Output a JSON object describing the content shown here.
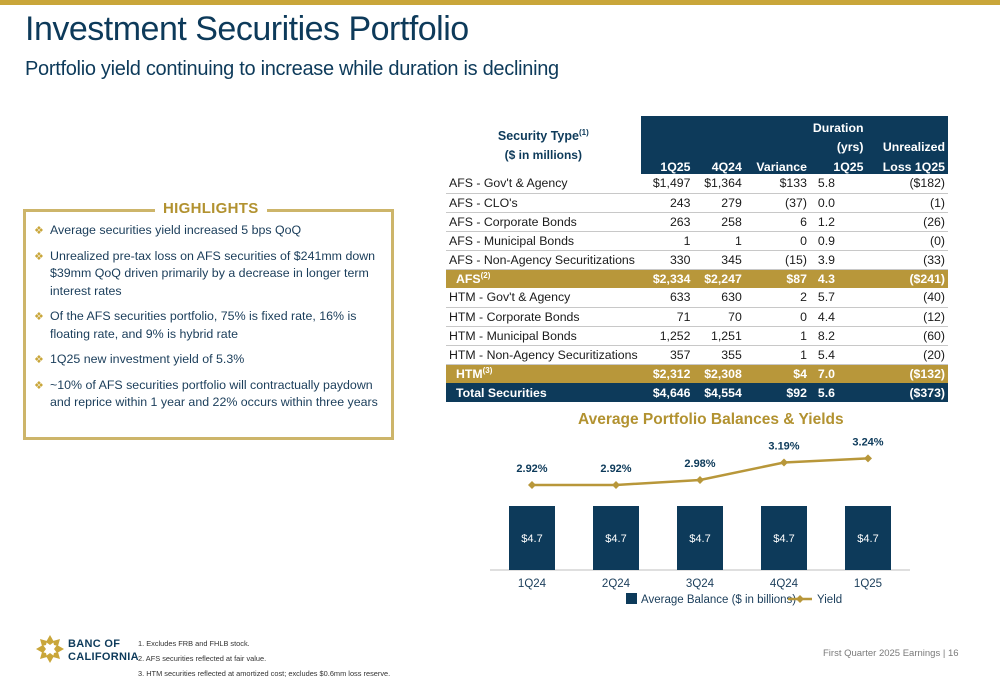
{
  "header": {
    "title": "Investment Securities Portfolio",
    "subtitle": "Portfolio yield continuing to increase while duration is declining"
  },
  "highlights": {
    "title": "HIGHLIGHTS",
    "items": [
      "Average securities yield increased 5 bps QoQ",
      "Unrealized pre-tax loss on AFS securities of $241mm down $39mm QoQ driven primarily by a decrease in longer term interest rates",
      "Of the AFS securities portfolio, 75% is fixed rate, 16% is floating rate, and 9% is hybrid rate",
      "1Q25 new investment yield of 5.3%",
      "~10% of AFS securities portfolio will contractually paydown and reprice within 1 year and 22% occurs within three years"
    ]
  },
  "table": {
    "type_header": "Security Type",
    "type_header_sup": "(1)",
    "type_subheader": "($ in millions)",
    "columns": [
      "1Q25",
      "4Q24",
      "Variance",
      "Duration (yrs) 1Q25",
      "Unrealized Loss 1Q25"
    ],
    "col_duration_1": "Duration",
    "col_duration_2": "(yrs)",
    "col_duration_3": "1Q25",
    "col_unreal_1": "Unrealized",
    "col_unreal_2": "Loss 1Q25",
    "rows": [
      {
        "label": "AFS - Gov't & Agency",
        "q1": "$1,497",
        "q4": "$1,364",
        "var": "$133",
        "dur": "5.8",
        "loss": "($182)"
      },
      {
        "label": "AFS - CLO's",
        "q1": "243",
        "q4": "279",
        "var": "(37)",
        "dur": "0.0",
        "loss": "(1)"
      },
      {
        "label": "AFS - Corporate Bonds",
        "q1": "263",
        "q4": "258",
        "var": "6",
        "dur": "1.2",
        "loss": "(26)"
      },
      {
        "label": "AFS - Municipal Bonds",
        "q1": "1",
        "q4": "1",
        "var": "0",
        "dur": "0.9",
        "loss": "(0)"
      },
      {
        "label": "AFS - Non-Agency Securitizations",
        "q1": "330",
        "q4": "345",
        "var": "(15)",
        "dur": "3.9",
        "loss": "(33)"
      }
    ],
    "afs": {
      "label": "AFS",
      "sup": "(2)",
      "q1": "$2,334",
      "q4": "$2,247",
      "var": "$87",
      "dur": "4.3",
      "loss": "($241)"
    },
    "htm_rows": [
      {
        "label": "HTM - Gov't & Agency",
        "q1": "633",
        "q4": "630",
        "var": "2",
        "dur": "5.7",
        "loss": "(40)"
      },
      {
        "label": "HTM - Corporate Bonds",
        "q1": "71",
        "q4": "70",
        "var": "0",
        "dur": "4.4",
        "loss": "(12)"
      },
      {
        "label": "HTM - Municipal Bonds",
        "q1": "1,252",
        "q4": "1,251",
        "var": "1",
        "dur": "8.2",
        "loss": "(60)"
      },
      {
        "label": "HTM - Non-Agency Securitizations",
        "q1": "357",
        "q4": "355",
        "var": "1",
        "dur": "5.4",
        "loss": "(20)"
      }
    ],
    "htm": {
      "label": "HTM",
      "sup": "(3)",
      "q1": "$2,312",
      "q4": "$2,308",
      "var": "$4",
      "dur": "7.0",
      "loss": "($132)"
    },
    "total": {
      "label": "Total Securities",
      "q1": "$4,646",
      "q4": "$4,554",
      "var": "$92",
      "dur": "5.6",
      "loss": "($373)"
    }
  },
  "chart_data": {
    "type": "bar",
    "title": "Average Portfolio Balances & Yields",
    "categories": [
      "1Q24",
      "2Q24",
      "3Q24",
      "4Q24",
      "1Q25"
    ],
    "series": [
      {
        "name": "Average Balance ($ in billions)",
        "type": "bar",
        "values": [
          4.7,
          4.7,
          4.7,
          4.7,
          4.7
        ],
        "labels": [
          "$4.7",
          "$4.7",
          "$4.7",
          "$4.7",
          "$4.7"
        ],
        "color": "#0d3a5a"
      },
      {
        "name": "Yield",
        "type": "line",
        "values": [
          2.92,
          2.92,
          2.98,
          3.19,
          3.24
        ],
        "labels": [
          "2.92%",
          "2.92%",
          "2.98%",
          "3.19%",
          "3.24%"
        ],
        "color": "#b8973a"
      }
    ],
    "legend_placement": "bottom"
  },
  "footer": {
    "company_line1": "BANC OF",
    "company_line2": "CALIFORNIA",
    "footnotes": [
      "1.  Excludes FRB and FHLB stock.",
      "2.  AFS securities reflected at fair value.",
      "3.  HTM securities reflected at amortized cost; excludes $0.6mm loss reserve."
    ],
    "report": "First Quarter 2025 Earnings |",
    "page": "16"
  },
  "colors": {
    "navy": "#0d3a5a",
    "gold": "#b8973a",
    "gold_light": "#cdb56a"
  }
}
